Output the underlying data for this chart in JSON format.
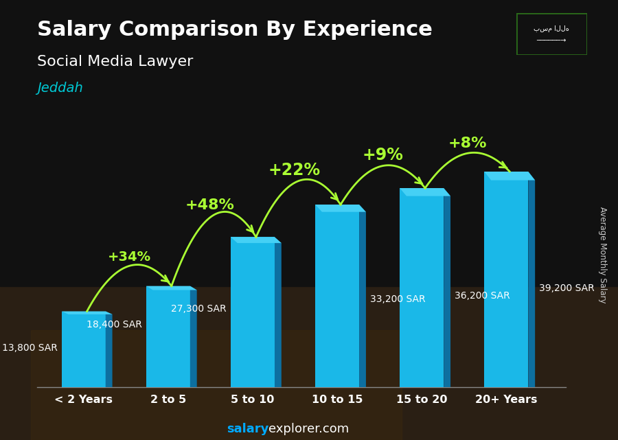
{
  "title": "Salary Comparison By Experience",
  "subtitle": "Social Media Lawyer",
  "city": "Jeddah",
  "ylabel": "Average Monthly Salary",
  "categories": [
    "< 2 Years",
    "2 to 5",
    "5 to 10",
    "10 to 15",
    "15 to 20",
    "20+ Years"
  ],
  "values": [
    13800,
    18400,
    27300,
    33200,
    36200,
    39200
  ],
  "value_labels": [
    "13,800 SAR",
    "18,400 SAR",
    "27,300 SAR",
    "33,200 SAR",
    "36,200 SAR",
    "39,200 SAR"
  ],
  "pct_labels": [
    "+34%",
    "+48%",
    "+22%",
    "+9%",
    "+8%"
  ],
  "pct_fontsizes": [
    14,
    16,
    17,
    17,
    16
  ],
  "bar_front_color": "#1ab8e8",
  "bar_side_color": "#0d6fa0",
  "bar_top_color": "#45d0f5",
  "bar_edge_color": "#00aadd",
  "bg_color": "#1a1a1a",
  "title_color": "#ffffff",
  "subtitle_color": "#ffffff",
  "city_color": "#00c8d4",
  "value_color": "#ffffff",
  "pct_color": "#aaff33",
  "arrow_color": "#aaff33",
  "ylabel_color": "#cccccc",
  "footer_salary_color": "#00aaff",
  "footer_other_color": "#ffffff",
  "ylim": [
    0,
    48000
  ],
  "bar_width": 0.52,
  "side_depth": 0.08
}
